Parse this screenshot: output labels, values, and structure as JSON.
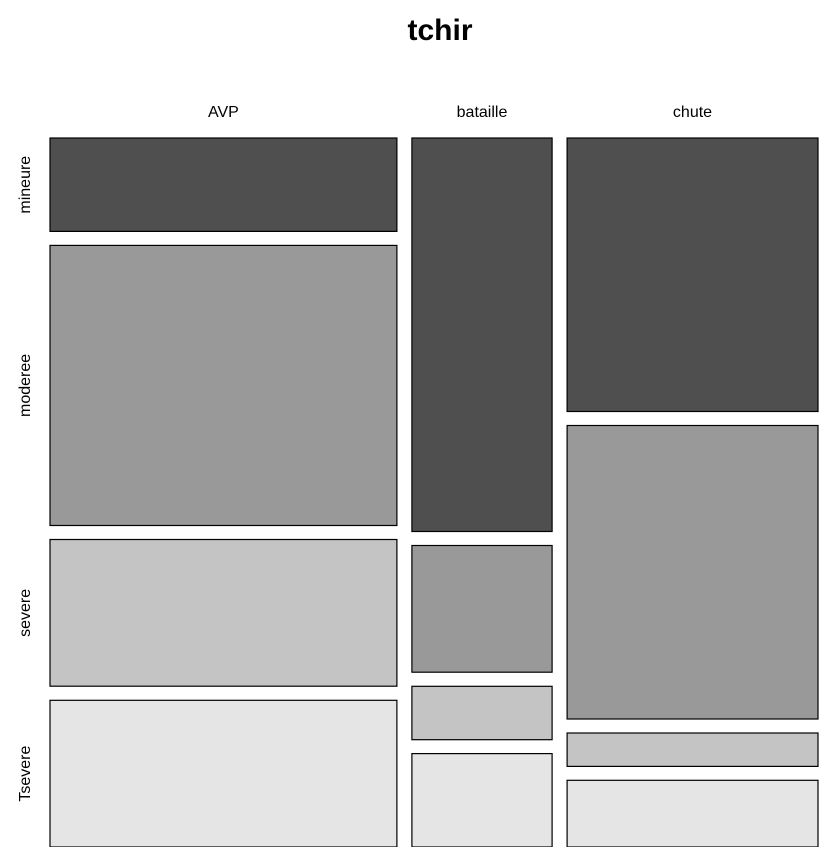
{
  "chart_data": {
    "type": "mosaic",
    "title": "tchir",
    "column_variable_categories": [
      "AVP",
      "bataille",
      "chute"
    ],
    "row_variable_categories": [
      "mineure",
      "moderee",
      "severe",
      "Tsevere"
    ],
    "column_proportions": [
      0.47,
      0.19,
      0.34
    ],
    "conditional_row_proportions": {
      "AVP": [
        0.14,
        0.42,
        0.22,
        0.22
      ],
      "bataille": [
        0.59,
        0.19,
        0.08,
        0.14
      ],
      "chute": [
        0.41,
        0.44,
        0.05,
        0.1
      ]
    },
    "colors": [
      "#4f4f4f",
      "#999999",
      "#c4c4c4",
      "#e5e5e5"
    ]
  }
}
